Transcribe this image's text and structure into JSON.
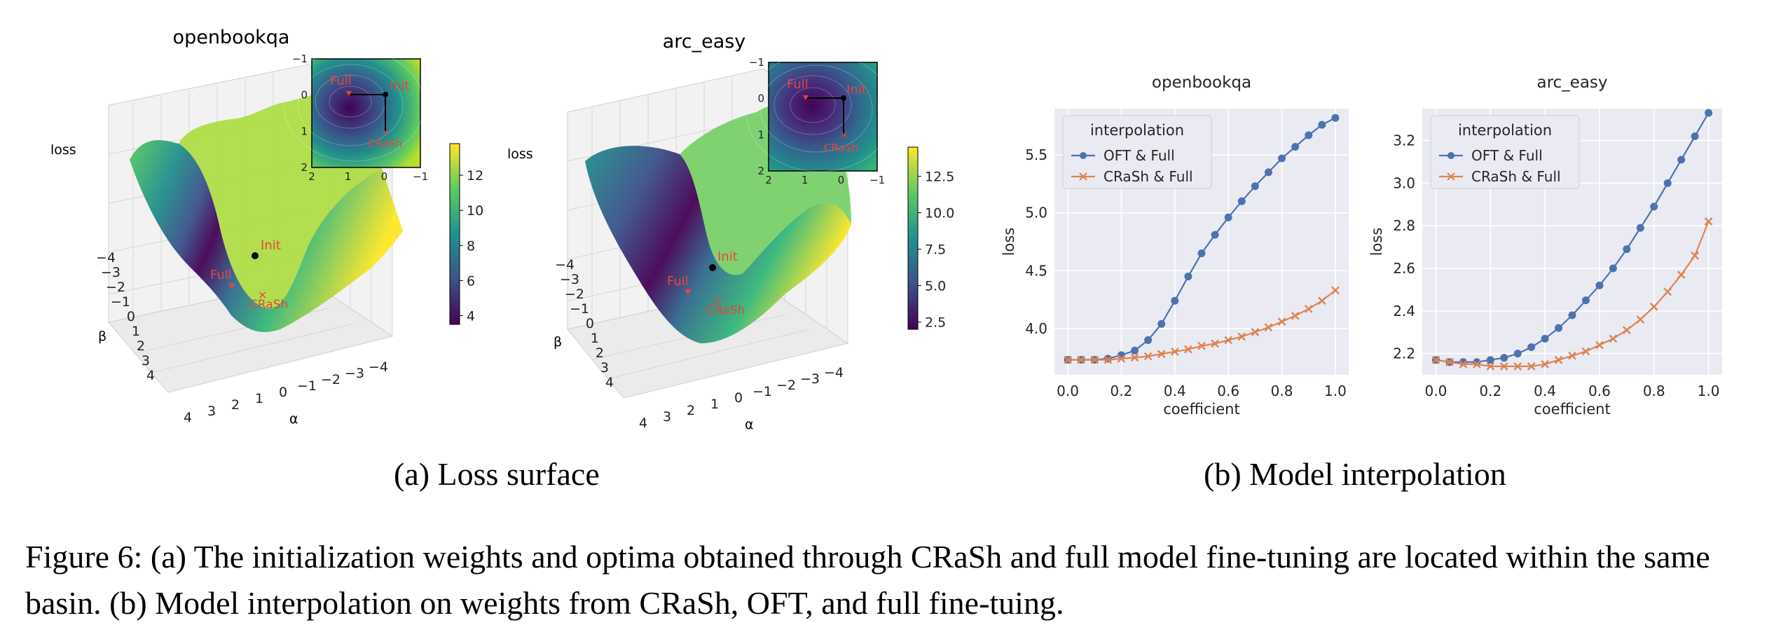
{
  "figure": {
    "caption": "Figure 6: (a) The initialization weights and optima obtained through CRaSh and full model fine-tuning are located within the same basin. (b) Model interpolation on weights from CRaSh, OFT, and full fine-tuing.",
    "subcaption_a": "(a) Loss surface",
    "subcaption_b": "(b) Model interpolation"
  },
  "chart_data": [
    {
      "type": "surface",
      "title": "openbookqa",
      "zlabel": "loss",
      "xlabel": "α",
      "ylabel": "β",
      "alpha_ticks": [
        "4",
        "3",
        "2",
        "1",
        "0",
        "−1",
        "−2",
        "−3",
        "−4"
      ],
      "beta_ticks": [
        "−4",
        "−3",
        "−2",
        "−1",
        "0",
        "1",
        "2",
        "3",
        "4"
      ],
      "points": [
        {
          "label": "Init"
        },
        {
          "label": "Full"
        },
        {
          "label": "CRaSh"
        }
      ],
      "colorbar": {
        "ticks": [
          "4",
          "6",
          "8",
          "10",
          "12"
        ],
        "range": [
          3.5,
          13.8
        ]
      },
      "inset": {
        "x_ticks": [
          "2",
          "1",
          "0",
          "−1"
        ],
        "y_ticks": [
          "−1",
          "0",
          "1",
          "2"
        ],
        "points": [
          {
            "label": "Full",
            "x": 1,
            "y": 0
          },
          {
            "label": "Init",
            "x": 0,
            "y": 0
          },
          {
            "label": "CRaSh",
            "x": 0,
            "y": 1
          }
        ]
      }
    },
    {
      "type": "surface",
      "title": "arc_easy",
      "zlabel": "loss",
      "xlabel": "α",
      "ylabel": "β",
      "alpha_ticks": [
        "4",
        "3",
        "2",
        "1",
        "0",
        "−1",
        "−2",
        "−3",
        "−4"
      ],
      "beta_ticks": [
        "−4",
        "−3",
        "−2",
        "−1",
        "0",
        "1",
        "2",
        "3",
        "4"
      ],
      "points": [
        {
          "label": "Init"
        },
        {
          "label": "Full"
        },
        {
          "label": "CRaSh"
        }
      ],
      "colorbar": {
        "ticks": [
          "2.5",
          "5.0",
          "7.5",
          "10.0",
          "12.5"
        ],
        "range": [
          2.0,
          14.5
        ]
      },
      "inset": {
        "x_ticks": [
          "2",
          "1",
          "0",
          "−1"
        ],
        "y_ticks": [
          "−1",
          "0",
          "1",
          "2"
        ],
        "points": [
          {
            "label": "Full",
            "x": 1,
            "y": 0
          },
          {
            "label": "Init",
            "x": 0,
            "y": 0
          },
          {
            "label": "CRaSh",
            "x": 0,
            "y": 1
          }
        ]
      }
    },
    {
      "type": "line",
      "title": "openbookqa",
      "xlabel": "coefficient",
      "ylabel": "loss",
      "xlim": [
        -0.05,
        1.05
      ],
      "ylim": [
        3.6,
        5.9
      ],
      "xticks": [
        0.0,
        0.2,
        0.4,
        0.6,
        0.8,
        1.0
      ],
      "xtick_labels": [
        "0.0",
        "0.2",
        "0.4",
        "0.6",
        "0.8",
        "1.0"
      ],
      "yticks": [
        4.0,
        4.5,
        5.0,
        5.5
      ],
      "ytick_labels": [
        "4.0",
        "4.5",
        "5.0",
        "5.5"
      ],
      "legend_title": "interpolation",
      "legend_position": "top-left",
      "grid": true,
      "x": [
        0.0,
        0.05,
        0.1,
        0.15,
        0.2,
        0.25,
        0.3,
        0.35,
        0.4,
        0.45,
        0.5,
        0.55,
        0.6,
        0.65,
        0.7,
        0.75,
        0.8,
        0.85,
        0.9,
        0.95,
        1.0
      ],
      "series": [
        {
          "name": "OFT & Full",
          "color": "#4c72b0",
          "marker": "circle",
          "values": [
            3.73,
            3.73,
            3.73,
            3.74,
            3.77,
            3.81,
            3.9,
            4.04,
            4.24,
            4.45,
            4.65,
            4.81,
            4.96,
            5.1,
            5.23,
            5.35,
            5.47,
            5.57,
            5.67,
            5.76,
            5.82
          ]
        },
        {
          "name": "CRaSh & Full",
          "color": "#dd8452",
          "marker": "x",
          "values": [
            3.73,
            3.73,
            3.73,
            3.73,
            3.74,
            3.75,
            3.76,
            3.78,
            3.8,
            3.82,
            3.85,
            3.87,
            3.9,
            3.93,
            3.97,
            4.01,
            4.06,
            4.11,
            4.17,
            4.24,
            4.33
          ]
        }
      ]
    },
    {
      "type": "line",
      "title": "arc_easy",
      "xlabel": "coefficient",
      "ylabel": "loss",
      "xlim": [
        -0.05,
        1.05
      ],
      "ylim": [
        2.1,
        3.35
      ],
      "xticks": [
        0.0,
        0.2,
        0.4,
        0.6,
        0.8,
        1.0
      ],
      "xtick_labels": [
        "0.0",
        "0.2",
        "0.4",
        "0.6",
        "0.8",
        "1.0"
      ],
      "yticks": [
        2.2,
        2.4,
        2.6,
        2.8,
        3.0,
        3.2
      ],
      "ytick_labels": [
        "2.2",
        "2.4",
        "2.6",
        "2.8",
        "3.0",
        "3.2"
      ],
      "legend_title": "interpolation",
      "legend_position": "top-left",
      "grid": true,
      "x": [
        0.0,
        0.05,
        0.1,
        0.15,
        0.2,
        0.25,
        0.3,
        0.35,
        0.4,
        0.45,
        0.5,
        0.55,
        0.6,
        0.65,
        0.7,
        0.75,
        0.8,
        0.85,
        0.9,
        0.95,
        1.0
      ],
      "series": [
        {
          "name": "OFT & Full",
          "color": "#4c72b0",
          "marker": "circle",
          "values": [
            2.17,
            2.16,
            2.16,
            2.16,
            2.17,
            2.18,
            2.2,
            2.23,
            2.27,
            2.32,
            2.38,
            2.45,
            2.52,
            2.6,
            2.69,
            2.79,
            2.89,
            3.0,
            3.11,
            3.22,
            3.33
          ]
        },
        {
          "name": "CRaSh & Full",
          "color": "#dd8452",
          "marker": "x",
          "values": [
            2.17,
            2.16,
            2.15,
            2.15,
            2.14,
            2.14,
            2.14,
            2.14,
            2.15,
            2.17,
            2.19,
            2.21,
            2.24,
            2.27,
            2.31,
            2.36,
            2.42,
            2.49,
            2.57,
            2.66,
            2.82
          ]
        }
      ]
    }
  ]
}
